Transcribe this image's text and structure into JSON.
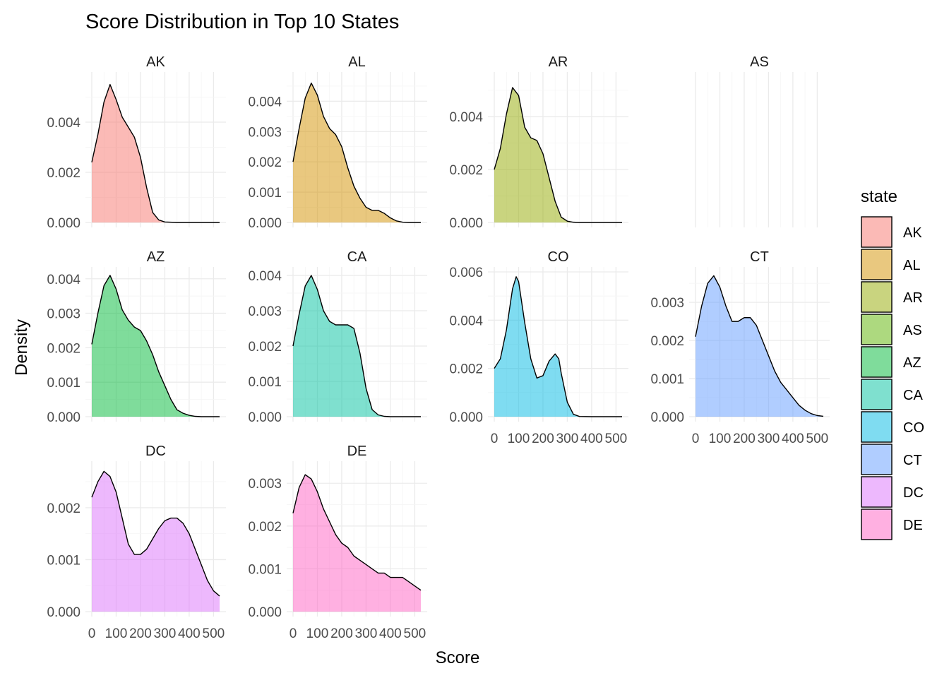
{
  "chart_data": {
    "type": "area",
    "subtype": "faceted density",
    "title": "Score Distribution in Top 10 States",
    "xlabel": "Score",
    "ylabel": "Density",
    "xlim": [
      0,
      525
    ],
    "x_ticks": [
      0,
      100,
      200,
      300,
      400,
      500
    ],
    "x_tick_labels": [
      "0",
      "100",
      "200",
      "300",
      "400",
      "500"
    ],
    "grid": true,
    "fill_opacity": 0.5,
    "legend": {
      "title": "state",
      "position": "right"
    },
    "panels": [
      {
        "name": "AK",
        "color": "#F8766D",
        "ylim": [
          0,
          0.0058
        ],
        "y_ticks": [
          0,
          0.002,
          0.004
        ],
        "y_tick_labels": [
          "0.000",
          "0.002",
          "0.004"
        ],
        "x": [
          0,
          25,
          50,
          75,
          100,
          125,
          150,
          175,
          200,
          225,
          250,
          275,
          300,
          350,
          400,
          450,
          525
        ],
        "values": [
          0.0024,
          0.0035,
          0.0048,
          0.0055,
          0.0049,
          0.0042,
          0.0038,
          0.0034,
          0.0026,
          0.0014,
          0.0004,
          0.0001,
          2e-05,
          0,
          0,
          0,
          0
        ]
      },
      {
        "name": "AL",
        "color": "#D39200",
        "ylim": [
          0,
          0.0048
        ],
        "y_ticks": [
          0,
          0.001,
          0.002,
          0.003,
          0.004
        ],
        "y_tick_labels": [
          "0.000",
          "0.001",
          "0.002",
          "0.003",
          "0.004"
        ],
        "x": [
          0,
          25,
          50,
          75,
          100,
          125,
          150,
          175,
          200,
          225,
          250,
          275,
          300,
          325,
          350,
          375,
          400,
          425,
          450,
          475,
          525
        ],
        "values": [
          0.002,
          0.0031,
          0.0041,
          0.0046,
          0.0042,
          0.0035,
          0.0031,
          0.0029,
          0.0025,
          0.0018,
          0.0012,
          0.0008,
          0.0005,
          0.0004,
          0.0004,
          0.0003,
          0.00015,
          5e-05,
          1e-05,
          0,
          0
        ]
      },
      {
        "name": "AR",
        "color": "#93AA00",
        "ylim": [
          0,
          0.0055
        ],
        "y_ticks": [
          0,
          0.002,
          0.004
        ],
        "y_tick_labels": [
          "0.000",
          "0.002",
          "0.004"
        ],
        "x": [
          0,
          25,
          50,
          75,
          100,
          125,
          150,
          175,
          200,
          225,
          250,
          275,
          300,
          325,
          350,
          400,
          450,
          525
        ],
        "values": [
          0.002,
          0.0028,
          0.0041,
          0.0051,
          0.0048,
          0.0036,
          0.0032,
          0.0031,
          0.0026,
          0.0017,
          0.0008,
          0.0002,
          5e-05,
          1e-05,
          0,
          0,
          0,
          0
        ]
      },
      {
        "name": "AS",
        "color": "#5BB300",
        "ylim": [
          0,
          0.0055
        ],
        "y_ticks": [],
        "y_tick_labels": [],
        "x": [],
        "values": []
      },
      {
        "name": "AZ",
        "color": "#00BA38",
        "ylim": [
          0,
          0.0042
        ],
        "y_ticks": [
          0,
          0.001,
          0.002,
          0.003,
          0.004
        ],
        "y_tick_labels": [
          "0.000",
          "0.001",
          "0.002",
          "0.003",
          "0.004"
        ],
        "x": [
          0,
          25,
          50,
          75,
          100,
          125,
          150,
          175,
          200,
          225,
          250,
          275,
          300,
          325,
          350,
          375,
          400,
          425,
          450,
          475,
          525
        ],
        "values": [
          0.0021,
          0.003,
          0.0038,
          0.0041,
          0.0037,
          0.0031,
          0.0028,
          0.0026,
          0.0025,
          0.0022,
          0.0018,
          0.0013,
          0.0009,
          0.0005,
          0.0002,
          0.0001,
          4e-05,
          1e-05,
          0,
          0,
          0
        ]
      },
      {
        "name": "CA",
        "color": "#00C19F",
        "ylim": [
          0,
          0.0041
        ],
        "y_ticks": [
          0,
          0.001,
          0.002,
          0.003,
          0.004
        ],
        "y_tick_labels": [
          "0.000",
          "0.001",
          "0.002",
          "0.003",
          "0.004"
        ],
        "x": [
          0,
          25,
          50,
          75,
          100,
          125,
          150,
          175,
          200,
          225,
          250,
          275,
          300,
          325,
          350,
          375,
          400,
          450,
          525
        ],
        "values": [
          0.002,
          0.0029,
          0.0037,
          0.004,
          0.0036,
          0.003,
          0.0027,
          0.0026,
          0.0026,
          0.0026,
          0.0025,
          0.0018,
          0.0008,
          0.0002,
          5e-05,
          1e-05,
          0,
          0,
          0
        ]
      },
      {
        "name": "CO",
        "color": "#00B9E3",
        "ylim": [
          0,
          0.006
        ],
        "y_ticks": [
          0,
          0.002,
          0.004,
          0.006
        ],
        "y_tick_labels": [
          "0.000",
          "0.002",
          "0.004",
          "0.006"
        ],
        "x": [
          0,
          25,
          50,
          75,
          90,
          100,
          125,
          150,
          175,
          200,
          225,
          250,
          265,
          275,
          300,
          325,
          350,
          400,
          450,
          525
        ],
        "values": [
          0.002,
          0.0024,
          0.0036,
          0.0053,
          0.0058,
          0.0056,
          0.0039,
          0.0024,
          0.0016,
          0.0017,
          0.0023,
          0.0026,
          0.0024,
          0.0018,
          0.0006,
          0.0001,
          1e-05,
          0,
          0,
          0
        ]
      },
      {
        "name": "CT",
        "color": "#619CFF",
        "ylim": [
          0,
          0.0038
        ],
        "y_ticks": [
          0,
          0.001,
          0.002,
          0.003
        ],
        "y_tick_labels": [
          "0.000",
          "0.001",
          "0.002",
          "0.003"
        ],
        "x": [
          0,
          25,
          50,
          75,
          100,
          125,
          150,
          175,
          200,
          225,
          250,
          275,
          300,
          325,
          350,
          375,
          400,
          425,
          450,
          475,
          500,
          525
        ],
        "values": [
          0.0021,
          0.0029,
          0.0035,
          0.0037,
          0.0034,
          0.0029,
          0.0025,
          0.0025,
          0.0026,
          0.0026,
          0.0024,
          0.002,
          0.0016,
          0.0012,
          0.0009,
          0.0007,
          0.0005,
          0.0003,
          0.00017,
          8e-05,
          3e-05,
          1e-05
        ]
      },
      {
        "name": "DC",
        "color": "#DB72FB",
        "ylim": [
          0,
          0.0028
        ],
        "y_ticks": [
          0,
          0.001,
          0.002
        ],
        "y_tick_labels": [
          "0.000",
          "0.001",
          "0.002"
        ],
        "x": [
          0,
          25,
          50,
          75,
          100,
          125,
          150,
          175,
          200,
          225,
          250,
          275,
          300,
          325,
          350,
          375,
          400,
          425,
          450,
          475,
          500,
          525
        ],
        "values": [
          0.0022,
          0.0025,
          0.0027,
          0.0026,
          0.0023,
          0.0018,
          0.0013,
          0.0011,
          0.0011,
          0.0012,
          0.0014,
          0.0016,
          0.00175,
          0.0018,
          0.0018,
          0.0017,
          0.0015,
          0.0012,
          0.0009,
          0.0006,
          0.0004,
          0.0003
        ]
      },
      {
        "name": "DE",
        "color": "#FF61C3",
        "ylim": [
          0,
          0.0034
        ],
        "y_ticks": [
          0,
          0.001,
          0.002,
          0.003
        ],
        "y_tick_labels": [
          "0.000",
          "0.001",
          "0.002",
          "0.003"
        ],
        "x": [
          0,
          25,
          50,
          75,
          100,
          125,
          150,
          175,
          200,
          225,
          250,
          275,
          300,
          325,
          350,
          375,
          400,
          425,
          450,
          475,
          500,
          525
        ],
        "values": [
          0.0023,
          0.0029,
          0.0032,
          0.0031,
          0.0028,
          0.0024,
          0.0021,
          0.0018,
          0.0016,
          0.0015,
          0.0013,
          0.0012,
          0.0011,
          0.001,
          0.0009,
          0.0009,
          0.0008,
          0.0008,
          0.0008,
          0.0007,
          0.0006,
          0.0005
        ]
      }
    ]
  }
}
